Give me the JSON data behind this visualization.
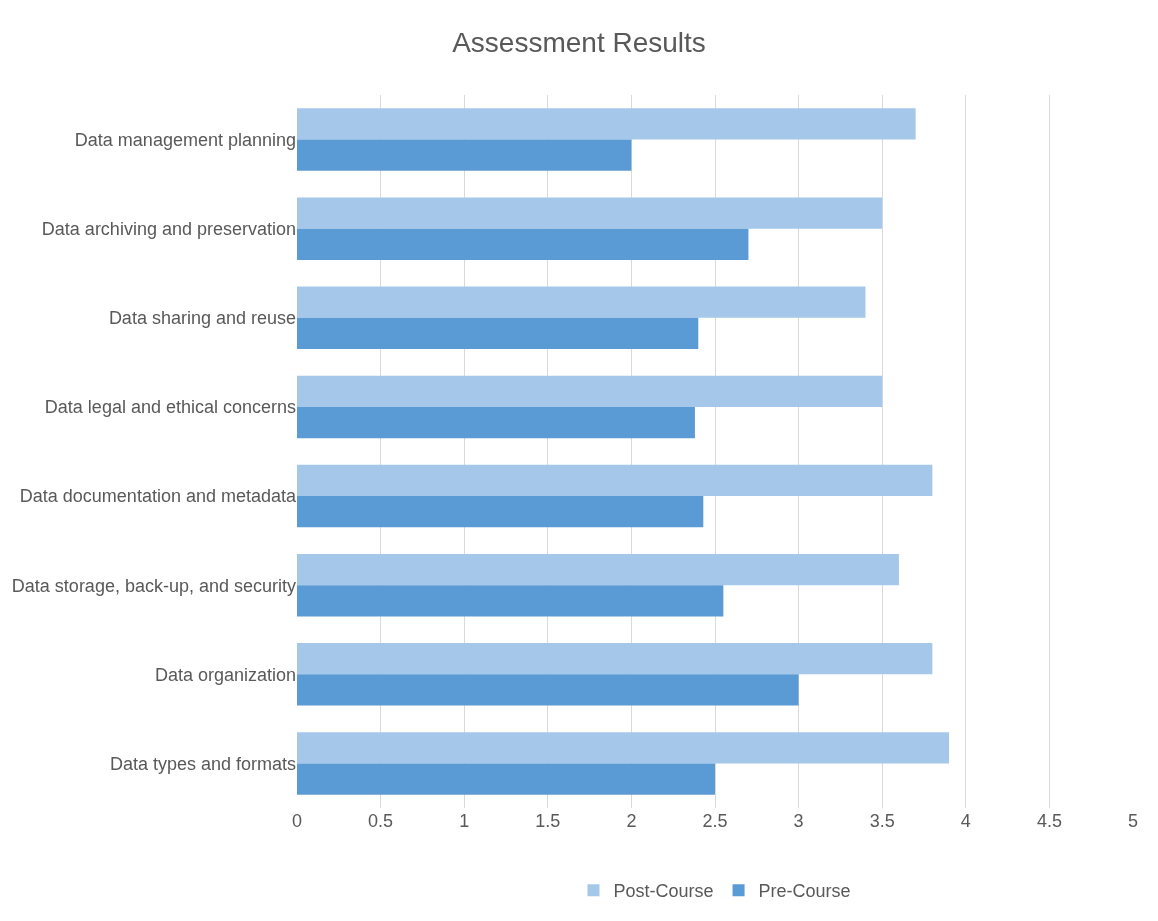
{
  "chart_data": {
    "type": "bar",
    "title": "Assessment Results",
    "orientation": "horizontal",
    "categories": [
      "Data management planning",
      "Data archiving and preservation",
      "Data sharing and reuse",
      "Data legal and ethical concerns",
      "Data documentation and metadata",
      "Data storage, back-up, and security",
      "Data organization",
      "Data types and formats"
    ],
    "series": [
      {
        "name": "Post-Course",
        "color": "#a5c8ea",
        "values": [
          3.7,
          3.5,
          3.4,
          3.5,
          3.8,
          3.6,
          3.8,
          3.9
        ]
      },
      {
        "name": "Pre-Course",
        "color": "#5b9bd5",
        "values": [
          2.0,
          2.7,
          2.4,
          2.38,
          2.43,
          2.55,
          3.0,
          2.5
        ]
      }
    ],
    "xlim": [
      0,
      5
    ],
    "xticks": [
      0,
      0.5,
      1,
      1.5,
      2,
      2.5,
      3,
      3.5,
      4,
      4.5,
      5
    ],
    "grid": "x",
    "legend": "bottom"
  }
}
